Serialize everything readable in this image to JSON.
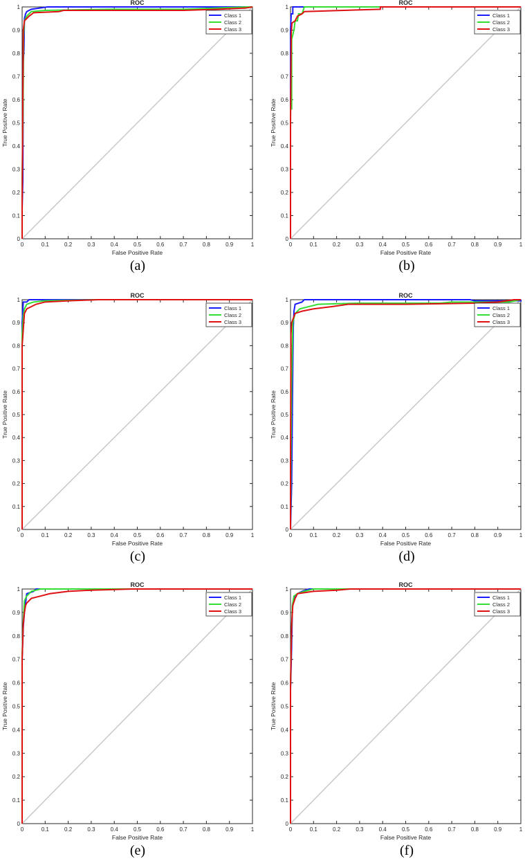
{
  "chart_data": [
    {
      "type": "line",
      "title": "ROC",
      "xlabel": "False Positive Rate",
      "ylabel": "True Positive Rate",
      "caption": "(a)",
      "xlim": [
        0,
        1
      ],
      "ylim": [
        0,
        1
      ],
      "ticks": [
        "0",
        "0.1",
        "0.2",
        "0.3",
        "0.4",
        "0.5",
        "0.6",
        "0.7",
        "0.8",
        "0.9",
        "1"
      ],
      "grid": false,
      "legend": "top-right",
      "reference_line": [
        [
          0,
          0
        ],
        [
          1,
          1
        ]
      ],
      "series": [
        {
          "name": "Class 1",
          "color": "#1a1aff",
          "points": [
            [
              0,
              0
            ],
            [
              0,
              0.13
            ],
            [
              0.003,
              0.25
            ],
            [
              0.005,
              0.76
            ],
            [
              0.008,
              0.82
            ],
            [
              0.01,
              0.95
            ],
            [
              0.015,
              0.97
            ],
            [
              0.02,
              0.98
            ],
            [
              0.04,
              0.99
            ],
            [
              0.11,
              1
            ],
            [
              1,
              1
            ]
          ]
        },
        {
          "name": "Class 2",
          "color": "#33dd33",
          "points": [
            [
              0,
              0
            ],
            [
              0,
              0.27
            ],
            [
              0.004,
              0.55
            ],
            [
              0.006,
              0.87
            ],
            [
              0.01,
              0.94
            ],
            [
              0.02,
              0.96
            ],
            [
              0.04,
              0.98
            ],
            [
              0.1,
              0.985
            ],
            [
              0.38,
              0.99
            ],
            [
              0.7,
              0.99
            ],
            [
              0.98,
              1
            ],
            [
              1,
              1
            ]
          ]
        },
        {
          "name": "Class 3",
          "color": "#dd1111",
          "points": [
            [
              0,
              0
            ],
            [
              0,
              0.14
            ],
            [
              0.002,
              0.44
            ],
            [
              0.005,
              0.9
            ],
            [
              0.01,
              0.94
            ],
            [
              0.02,
              0.95
            ],
            [
              0.03,
              0.96
            ],
            [
              0.05,
              0.975
            ],
            [
              0.16,
              0.98
            ],
            [
              0.18,
              0.985
            ],
            [
              0.7,
              0.985
            ],
            [
              0.85,
              0.99
            ],
            [
              0.97,
              0.995
            ],
            [
              1,
              1
            ]
          ]
        }
      ]
    },
    {
      "type": "line",
      "title": "ROC",
      "xlabel": "False Positive Rate",
      "ylabel": "True Positive Rate",
      "caption": "(b)",
      "xlim": [
        0,
        1
      ],
      "ylim": [
        0,
        1
      ],
      "ticks": [
        "0",
        "0.1",
        "0.2",
        "0.3",
        "0.4",
        "0.5",
        "0.6",
        "0.7",
        "0.8",
        "0.9",
        "1"
      ],
      "grid": false,
      "legend": "top-right",
      "reference_line": [
        [
          0,
          0
        ],
        [
          1,
          1
        ]
      ],
      "series": [
        {
          "name": "Class 1",
          "color": "#1a1aff",
          "points": [
            [
              0,
              0
            ],
            [
              0,
              0.9
            ],
            [
              0.003,
              0.97
            ],
            [
              0.01,
              0.97
            ],
            [
              0.01,
              1
            ],
            [
              1,
              1
            ]
          ]
        },
        {
          "name": "Class 2",
          "color": "#33dd33",
          "points": [
            [
              0,
              0
            ],
            [
              0,
              0.56
            ],
            [
              0.005,
              0.56
            ],
            [
              0.005,
              0.86
            ],
            [
              0.015,
              0.9
            ],
            [
              0.02,
              0.94
            ],
            [
              0.03,
              0.94
            ],
            [
              0.035,
              0.97
            ],
            [
              0.05,
              0.97
            ],
            [
              0.06,
              1
            ],
            [
              1,
              1
            ]
          ]
        },
        {
          "name": "Class 3",
          "color": "#dd1111",
          "points": [
            [
              0,
              0
            ],
            [
              0,
              0.5
            ],
            [
              0.003,
              0.88
            ],
            [
              0.006,
              0.93
            ],
            [
              0.02,
              0.94
            ],
            [
              0.03,
              0.96
            ],
            [
              0.05,
              0.97
            ],
            [
              0.06,
              0.98
            ],
            [
              0.39,
              0.99
            ],
            [
              0.39,
              1
            ],
            [
              1,
              1
            ]
          ]
        }
      ]
    },
    {
      "type": "line",
      "title": "ROC",
      "xlabel": "False Positive Rate",
      "ylabel": "True Positive Rate",
      "caption": "(c)",
      "xlim": [
        0,
        1
      ],
      "ylim": [
        0,
        1
      ],
      "ticks": [
        "0",
        "0.1",
        "0.2",
        "0.3",
        "0.4",
        "0.5",
        "0.6",
        "0.7",
        "0.8",
        "0.9",
        "1"
      ],
      "grid": false,
      "legend": "top-right",
      "reference_line": [
        [
          0,
          0
        ],
        [
          1,
          1
        ]
      ],
      "series": [
        {
          "name": "Class 1",
          "color": "#1a1aff",
          "points": [
            [
              0,
              0
            ],
            [
              0,
              0.9
            ],
            [
              0.005,
              0.99
            ],
            [
              0.02,
              0.99
            ],
            [
              0.03,
              1
            ],
            [
              1,
              1
            ]
          ]
        },
        {
          "name": "Class 2",
          "color": "#33dd33",
          "points": [
            [
              0,
              0
            ],
            [
              0,
              0.85
            ],
            [
              0.005,
              0.93
            ],
            [
              0.01,
              0.96
            ],
            [
              0.02,
              0.98
            ],
            [
              0.05,
              0.99
            ],
            [
              0.1,
              0.995
            ],
            [
              0.32,
              1
            ],
            [
              1,
              1
            ]
          ]
        },
        {
          "name": "Class 3",
          "color": "#dd1111",
          "points": [
            [
              0,
              0
            ],
            [
              0,
              0.8
            ],
            [
              0.005,
              0.87
            ],
            [
              0.01,
              0.94
            ],
            [
              0.02,
              0.96
            ],
            [
              0.04,
              0.97
            ],
            [
              0.06,
              0.98
            ],
            [
              0.1,
              0.99
            ],
            [
              0.2,
              0.995
            ],
            [
              0.33,
              1
            ],
            [
              1,
              1
            ]
          ]
        }
      ]
    },
    {
      "type": "line",
      "title": "ROC",
      "xlabel": "False Positive Rate",
      "ylabel": "True Positive Rate",
      "caption": "(d)",
      "xlim": [
        0,
        1
      ],
      "ylim": [
        0,
        1
      ],
      "ticks": [
        "0",
        "0.1",
        "0.2",
        "0.3",
        "0.4",
        "0.5",
        "0.6",
        "0.7",
        "0.8",
        "0.9",
        "1"
      ],
      "grid": false,
      "legend": "top-right",
      "reference_line": [
        [
          0,
          0
        ],
        [
          1,
          1
        ]
      ],
      "series": [
        {
          "name": "Class 1",
          "color": "#1a1aff",
          "points": [
            [
              0,
              0
            ],
            [
              0.005,
              0.2
            ],
            [
              0.01,
              0.72
            ],
            [
              0.012,
              0.88
            ],
            [
              0.015,
              0.95
            ],
            [
              0.02,
              0.98
            ],
            [
              0.05,
              0.99
            ],
            [
              0.06,
              1
            ],
            [
              0.78,
              1
            ],
            [
              0.8,
              0.995
            ],
            [
              1,
              0.995
            ],
            [
              1,
              1
            ]
          ]
        },
        {
          "name": "Class 2",
          "color": "#33dd33",
          "points": [
            [
              0,
              0
            ],
            [
              0.002,
              0.33
            ],
            [
              0.005,
              0.63
            ],
            [
              0.01,
              0.9
            ],
            [
              0.02,
              0.94
            ],
            [
              0.04,
              0.96
            ],
            [
              0.08,
              0.97
            ],
            [
              0.12,
              0.98
            ],
            [
              0.3,
              0.985
            ],
            [
              0.65,
              0.985
            ],
            [
              0.7,
              0.99
            ],
            [
              0.95,
              0.99
            ],
            [
              1,
              1
            ]
          ]
        },
        {
          "name": "Class 3",
          "color": "#dd1111",
          "points": [
            [
              0,
              0
            ],
            [
              0,
              0.3
            ],
            [
              0.002,
              0.85
            ],
            [
              0.005,
              0.9
            ],
            [
              0.02,
              0.94
            ],
            [
              0.05,
              0.95
            ],
            [
              0.1,
              0.96
            ],
            [
              0.18,
              0.97
            ],
            [
              0.25,
              0.98
            ],
            [
              0.5,
              0.98
            ],
            [
              0.8,
              0.985
            ],
            [
              0.9,
              0.99
            ],
            [
              0.97,
              1
            ],
            [
              1,
              1
            ]
          ]
        }
      ]
    },
    {
      "type": "line",
      "title": "ROC",
      "xlabel": "False Positive Rate",
      "ylabel": "True Positive Rate",
      "caption": "(e)",
      "xlim": [
        0,
        1
      ],
      "ylim": [
        0,
        1
      ],
      "ticks": [
        "0",
        "0.1",
        "0.2",
        "0.3",
        "0.4",
        "0.5",
        "0.6",
        "0.7",
        "0.8",
        "0.9",
        "1"
      ],
      "grid": false,
      "legend": "top-right",
      "reference_line": [
        [
          0,
          0
        ],
        [
          1,
          1
        ]
      ],
      "series": [
        {
          "name": "Class 1",
          "color": "#1a1aff",
          "points": [
            [
              0,
              0
            ],
            [
              0,
              0.7
            ],
            [
              0.005,
              0.84
            ],
            [
              0.01,
              0.9
            ],
            [
              0.02,
              0.98
            ],
            [
              0.05,
              0.99
            ],
            [
              0.06,
              1
            ],
            [
              1,
              1
            ]
          ]
        },
        {
          "name": "Class 2",
          "color": "#33dd33",
          "points": [
            [
              0,
              0
            ],
            [
              0,
              0.72
            ],
            [
              0.005,
              0.86
            ],
            [
              0.01,
              0.95
            ],
            [
              0.02,
              0.97
            ],
            [
              0.04,
              0.99
            ],
            [
              0.08,
              1
            ],
            [
              1,
              1
            ]
          ]
        },
        {
          "name": "Class 3",
          "color": "#dd1111",
          "points": [
            [
              0,
              0
            ],
            [
              0,
              0.7
            ],
            [
              0.005,
              0.85
            ],
            [
              0.01,
              0.9
            ],
            [
              0.015,
              0.93
            ],
            [
              0.02,
              0.94
            ],
            [
              0.04,
              0.96
            ],
            [
              0.08,
              0.97
            ],
            [
              0.12,
              0.98
            ],
            [
              0.2,
              0.99
            ],
            [
              0.3,
              0.995
            ],
            [
              0.48,
              1
            ],
            [
              1,
              1
            ]
          ]
        }
      ]
    },
    {
      "type": "line",
      "title": "ROC",
      "xlabel": "False Positive Rate",
      "ylabel": "True Positive Rate",
      "caption": "(f)",
      "xlim": [
        0,
        1
      ],
      "ylim": [
        0,
        1
      ],
      "ticks": [
        "0",
        "0.1",
        "0.2",
        "0.3",
        "0.4",
        "0.5",
        "0.6",
        "0.7",
        "0.8",
        "0.9",
        "1"
      ],
      "grid": false,
      "legend": "top-right",
      "reference_line": [
        [
          0,
          0
        ],
        [
          1,
          1
        ]
      ],
      "series": [
        {
          "name": "Class 1",
          "color": "#1a1aff",
          "points": [
            [
              0,
              0
            ],
            [
              0,
              0.57
            ],
            [
              0.005,
              0.76
            ],
            [
              0.008,
              0.92
            ],
            [
              0.015,
              0.96
            ],
            [
              0.03,
              0.98
            ],
            [
              0.05,
              0.99
            ],
            [
              0.08,
              1
            ],
            [
              1,
              1
            ]
          ]
        },
        {
          "name": "Class 2",
          "color": "#33dd33",
          "points": [
            [
              0,
              0
            ],
            [
              0,
              0.6
            ],
            [
              0.004,
              0.8
            ],
            [
              0.008,
              0.93
            ],
            [
              0.015,
              0.97
            ],
            [
              0.03,
              0.98
            ],
            [
              0.06,
              0.99
            ],
            [
              0.1,
              1
            ],
            [
              1,
              1
            ]
          ]
        },
        {
          "name": "Class 3",
          "color": "#dd1111",
          "points": [
            [
              0,
              0
            ],
            [
              0,
              0.58
            ],
            [
              0.005,
              0.85
            ],
            [
              0.01,
              0.93
            ],
            [
              0.02,
              0.96
            ],
            [
              0.03,
              0.98
            ],
            [
              0.1,
              0.99
            ],
            [
              0.2,
              0.995
            ],
            [
              0.26,
              1
            ],
            [
              1,
              1
            ]
          ]
        }
      ]
    }
  ]
}
